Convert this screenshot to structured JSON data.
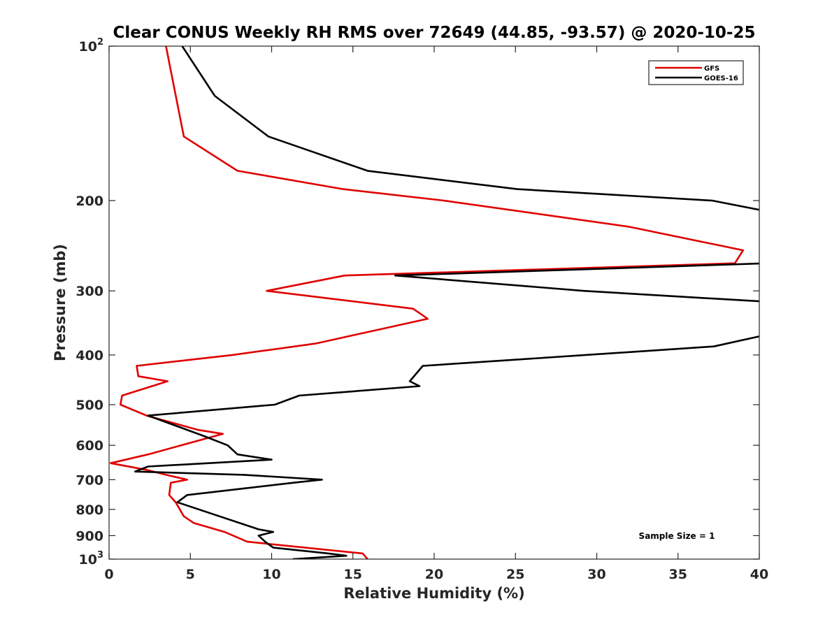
{
  "chart_data": {
    "type": "line",
    "title": "Clear CONUS Weekly RH RMS over 72649 (44.85, -93.57) @ 2020-10-25",
    "xlabel": "Relative Humidity (%)",
    "ylabel": "Pressure (mb)",
    "xlim": [
      0,
      40
    ],
    "ylim": [
      100,
      1000
    ],
    "y_scale": "log",
    "y_reversed": true,
    "grid": false,
    "legend_position": "top-right",
    "x_ticks": [
      0,
      5,
      10,
      15,
      20,
      25,
      30,
      35,
      40
    ],
    "y_ticks": [
      {
        "value": 100,
        "base": "10",
        "exp": "2"
      },
      {
        "value": 200,
        "label": "200"
      },
      {
        "value": 300,
        "label": "300"
      },
      {
        "value": 400,
        "label": "400"
      },
      {
        "value": 500,
        "label": "500"
      },
      {
        "value": 600,
        "label": "600"
      },
      {
        "value": 700,
        "label": "700"
      },
      {
        "value": 800,
        "label": "800"
      },
      {
        "value": 900,
        "label": "900"
      },
      {
        "value": 1000,
        "base": "10",
        "exp": "3"
      }
    ],
    "series": [
      {
        "name": "GFS",
        "color": "#e00000",
        "points": [
          [
            3.5,
            100
          ],
          [
            4.6,
            150
          ],
          [
            7.9,
            175
          ],
          [
            14.4,
            190
          ],
          [
            20.6,
            200
          ],
          [
            32.0,
            225
          ],
          [
            39.0,
            250
          ],
          [
            38.5,
            265
          ],
          [
            14.5,
            280
          ],
          [
            9.7,
            300
          ],
          [
            18.7,
            325
          ],
          [
            19.6,
            340
          ],
          [
            12.7,
            380
          ],
          [
            7.6,
            400
          ],
          [
            1.7,
            420
          ],
          [
            1.8,
            440
          ],
          [
            3.6,
            450
          ],
          [
            0.8,
            480
          ],
          [
            0.7,
            500
          ],
          [
            2.3,
            525
          ],
          [
            5.5,
            560
          ],
          [
            7.0,
            570
          ],
          [
            2.4,
            625
          ],
          [
            0.1,
            650
          ],
          [
            2.3,
            670
          ],
          [
            3.5,
            685
          ],
          [
            4.8,
            700
          ],
          [
            3.8,
            710
          ],
          [
            3.7,
            750
          ],
          [
            4.1,
            775
          ],
          [
            4.6,
            825
          ],
          [
            5.2,
            850
          ],
          [
            7.1,
            885
          ],
          [
            8.5,
            925
          ],
          [
            15.6,
            975
          ],
          [
            15.9,
            1000
          ]
        ]
      },
      {
        "name": "GOES-16",
        "color": "#000000",
        "points": [
          [
            4.5,
            100
          ],
          [
            6.5,
            125
          ],
          [
            9.8,
            150
          ],
          [
            15.9,
            175
          ],
          [
            25.1,
            190
          ],
          [
            37.1,
            200
          ],
          [
            40.5,
            210
          ],
          [
            40.5,
            265
          ],
          [
            17.6,
            280
          ],
          [
            29.2,
            300
          ],
          [
            40.5,
            315
          ],
          [
            40.5,
            365
          ],
          [
            37.2,
            385
          ],
          [
            19.3,
            420
          ],
          [
            18.5,
            450
          ],
          [
            19.1,
            460
          ],
          [
            11.7,
            480
          ],
          [
            10.2,
            500
          ],
          [
            2.4,
            525
          ],
          [
            5.8,
            575
          ],
          [
            7.3,
            600
          ],
          [
            7.9,
            625
          ],
          [
            10.0,
            640
          ],
          [
            2.4,
            660
          ],
          [
            1.6,
            675
          ],
          [
            8.3,
            685
          ],
          [
            13.1,
            700
          ],
          [
            11.3,
            710
          ],
          [
            4.8,
            750
          ],
          [
            4.2,
            775
          ],
          [
            9.2,
            875
          ],
          [
            10.1,
            885
          ],
          [
            9.2,
            900
          ],
          [
            9.6,
            925
          ],
          [
            10.1,
            950
          ],
          [
            13.5,
            975
          ],
          [
            14.6,
            985
          ],
          [
            11.3,
            1000
          ]
        ]
      }
    ],
    "annotations": [
      {
        "text": "Sample Size = 1"
      }
    ]
  }
}
